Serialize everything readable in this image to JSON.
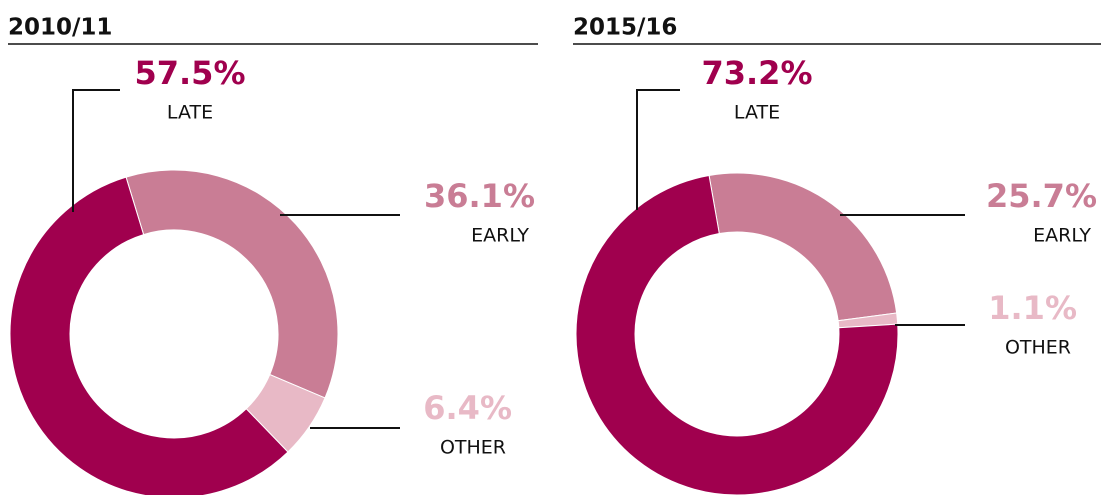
{
  "chart_data": [
    {
      "type": "donut",
      "title": "2010/11",
      "categories": [
        "LATE",
        "EARLY",
        "OTHER"
      ],
      "values": [
        57.5,
        36.1,
        6.4
      ],
      "value_labels": [
        "57.5%",
        "36.1%",
        "6.4%"
      ],
      "colors": [
        "#a0004e",
        "#c97d95",
        "#e8b9c6"
      ]
    },
    {
      "type": "donut",
      "title": "2015/16",
      "categories": [
        "LATE",
        "EARLY",
        "OTHER"
      ],
      "values": [
        73.2,
        25.7,
        1.1
      ],
      "value_labels": [
        "73.2%",
        "25.7%",
        "1.1%"
      ],
      "colors": [
        "#a0004e",
        "#c97d95",
        "#e8b9c6"
      ]
    }
  ]
}
